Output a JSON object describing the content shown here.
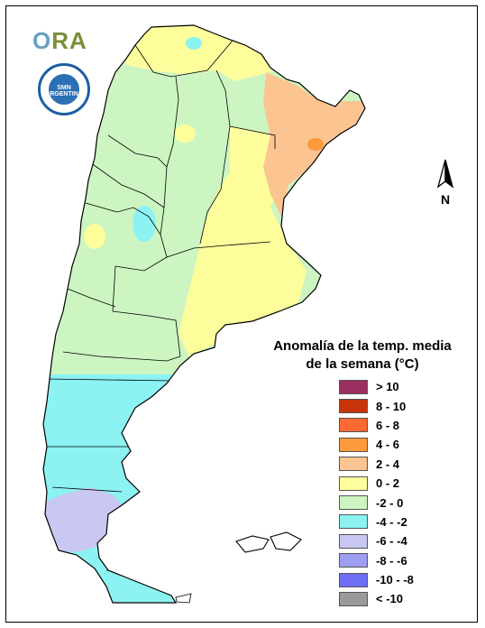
{
  "map": {
    "logo_text": "ORA",
    "seal_text": "SMN ARGENTINA",
    "north_label": "N",
    "legend_title_line1": "Anomalía de la temp. media",
    "legend_title_line2": "de la semana (°C)",
    "legend": [
      {
        "label": "> 10",
        "color": "#9c2f62"
      },
      {
        "label": "8 - 10",
        "color": "#c8340a"
      },
      {
        "label": "6 - 8",
        "color": "#ff6a33"
      },
      {
        "label": "4 - 6",
        "color": "#fd9a3c"
      },
      {
        "label": "2 - 4",
        "color": "#fbc490"
      },
      {
        "label": "0 - 2",
        "color": "#fdfd9c"
      },
      {
        "label": "-2 - 0",
        "color": "#cdf5c2"
      },
      {
        "label": "-4 - -2",
        "color": "#8cf2f2"
      },
      {
        "label": "-6 - -4",
        "color": "#c8c8f2"
      },
      {
        "label": "-8 - -6",
        "color": "#9d9df2"
      },
      {
        "label": "-10 - -8",
        "color": "#6e6ef5"
      },
      {
        "label": "< -10",
        "color": "#9a9a9a"
      }
    ],
    "colors": {
      "anomaly_0_2": "#fdfd9c",
      "anomaly_2_4": "#fbc490",
      "anomaly_4_6": "#fd9a3c",
      "anomaly_m2_0": "#cdf5c2",
      "anomaly_m4_m2": "#8cf2f2",
      "anomaly_m6_m4": "#c8c8f2"
    }
  }
}
